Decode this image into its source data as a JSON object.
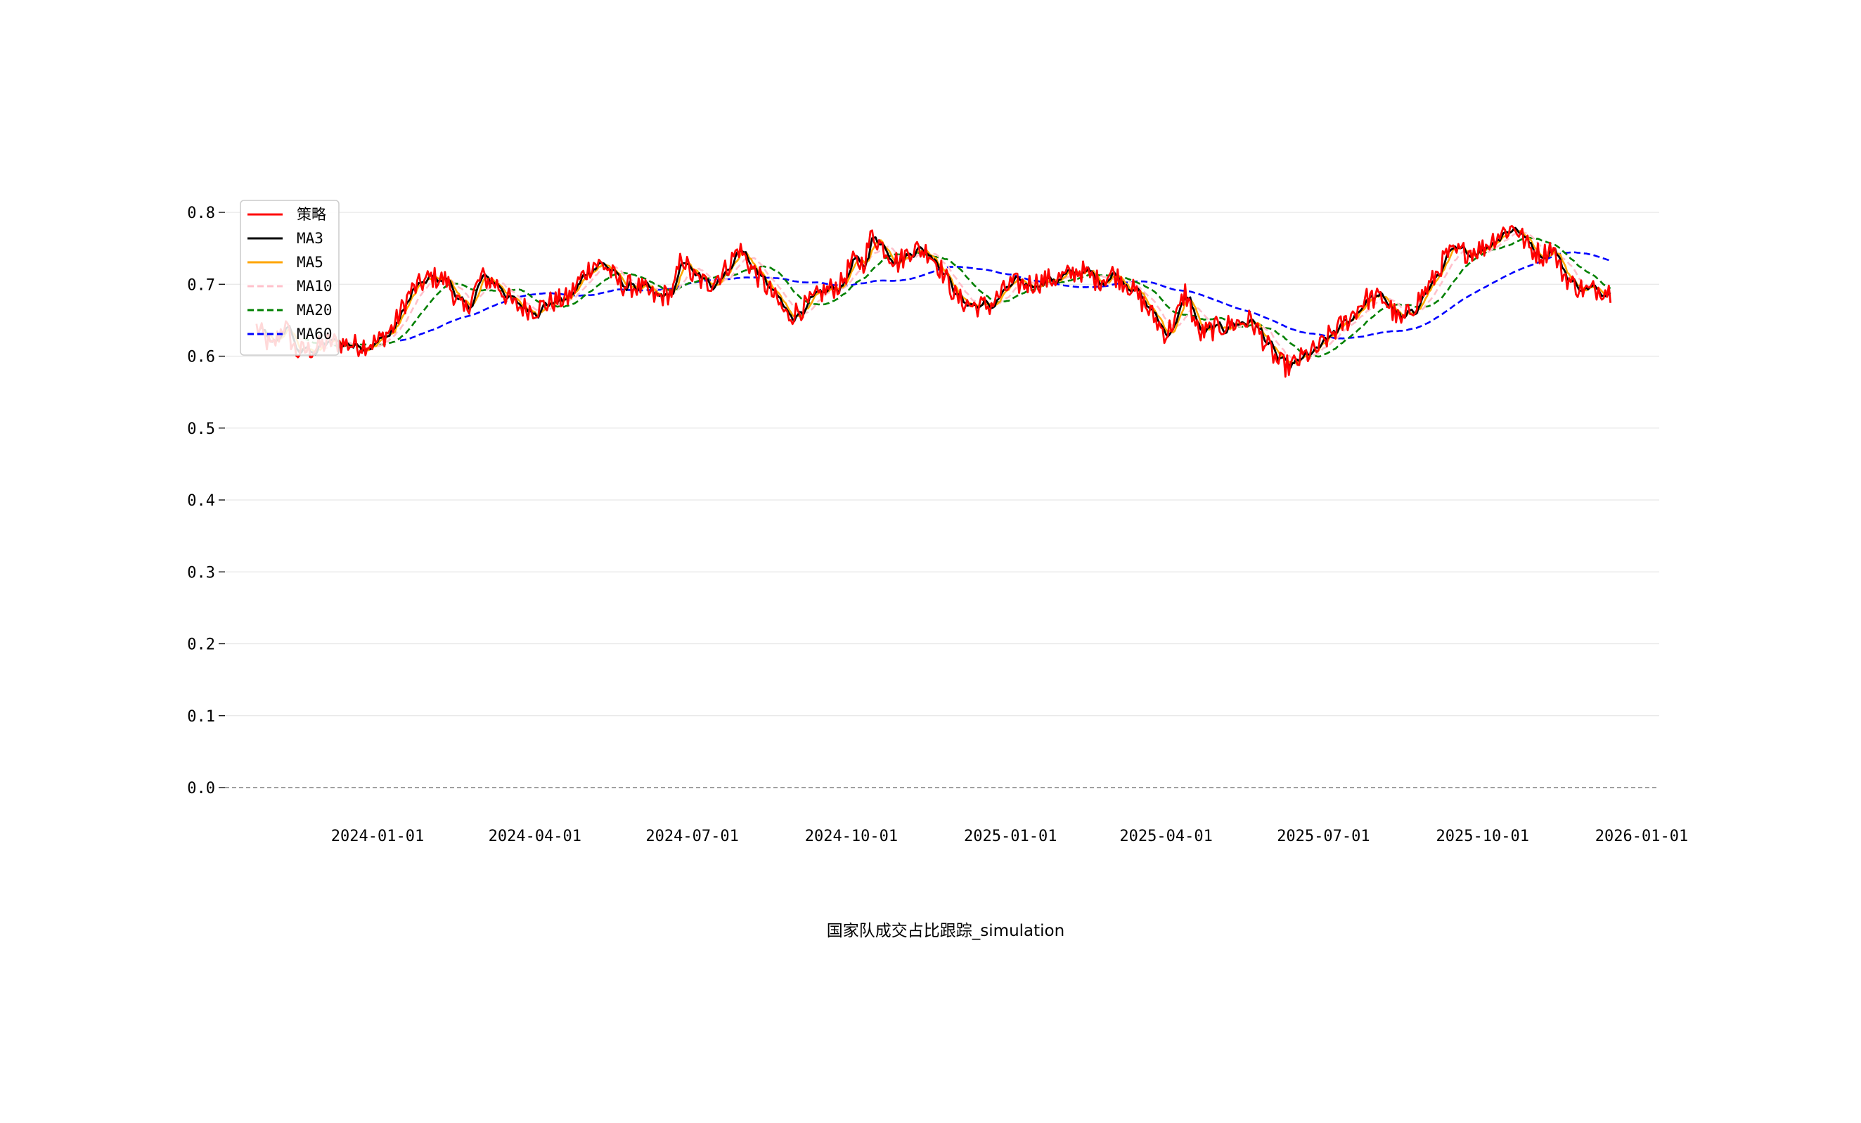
{
  "chart_data": {
    "type": "line",
    "xlabel": "国家队成交占比跟踪_simulation",
    "ylabel": "",
    "x_range": [
      "2023-10-01",
      "2026-01-01"
    ],
    "ylim": [
      0,
      0.8
    ],
    "y_ticks": [
      0.0,
      0.1,
      0.2,
      0.3,
      0.4,
      0.5,
      0.6,
      0.7,
      0.8
    ],
    "x_ticks": [
      "2024-01-01",
      "2024-04-01",
      "2024-07-01",
      "2024-10-01",
      "2025-01-01",
      "2025-04-01",
      "2025-07-01",
      "2025-10-01",
      "2026-01-01"
    ],
    "grid": "horizontal",
    "legend_position": "top-left",
    "zero_line": {
      "y": 0.0,
      "color": "#808080",
      "style": "dashed"
    },
    "keypoints": [
      [
        "2023-10-23",
        0.64
      ],
      [
        "2023-11-01",
        0.61
      ],
      [
        "2023-11-08",
        0.645
      ],
      [
        "2023-11-15",
        0.605
      ],
      [
        "2023-11-25",
        0.61
      ],
      [
        "2023-12-05",
        0.62
      ],
      [
        "2023-12-20",
        0.615
      ],
      [
        "2024-01-01",
        0.62
      ],
      [
        "2024-01-10",
        0.64
      ],
      [
        "2024-01-20",
        0.69
      ],
      [
        "2024-02-01",
        0.71
      ],
      [
        "2024-02-10",
        0.705
      ],
      [
        "2024-02-20",
        0.66
      ],
      [
        "2024-03-01",
        0.71
      ],
      [
        "2024-03-10",
        0.7
      ],
      [
        "2024-03-20",
        0.67
      ],
      [
        "2024-04-01",
        0.665
      ],
      [
        "2024-04-10",
        0.675
      ],
      [
        "2024-04-20",
        0.68
      ],
      [
        "2024-04-28",
        0.71
      ],
      [
        "2024-05-05",
        0.73
      ],
      [
        "2024-05-12",
        0.725
      ],
      [
        "2024-05-20",
        0.7
      ],
      [
        "2024-06-01",
        0.695
      ],
      [
        "2024-06-10",
        0.68
      ],
      [
        "2024-06-20",
        0.69
      ],
      [
        "2024-06-25",
        0.74
      ],
      [
        "2024-07-01",
        0.71
      ],
      [
        "2024-07-10",
        0.7
      ],
      [
        "2024-07-20",
        0.72
      ],
      [
        "2024-07-28",
        0.75
      ],
      [
        "2024-08-05",
        0.72
      ],
      [
        "2024-08-15",
        0.69
      ],
      [
        "2024-08-25",
        0.655
      ],
      [
        "2024-09-05",
        0.67
      ],
      [
        "2024-09-15",
        0.69
      ],
      [
        "2024-09-25",
        0.7
      ],
      [
        "2024-10-01",
        0.73
      ],
      [
        "2024-10-08",
        0.73
      ],
      [
        "2024-10-13",
        0.77
      ],
      [
        "2024-10-20",
        0.75
      ],
      [
        "2024-10-28",
        0.73
      ],
      [
        "2024-11-05",
        0.75
      ],
      [
        "2024-11-15",
        0.745
      ],
      [
        "2024-11-22",
        0.72
      ],
      [
        "2024-12-01",
        0.68
      ],
      [
        "2024-12-10",
        0.67
      ],
      [
        "2024-12-20",
        0.67
      ],
      [
        "2025-01-01",
        0.7
      ],
      [
        "2025-01-10",
        0.7
      ],
      [
        "2025-01-20",
        0.705
      ],
      [
        "2025-02-01",
        0.71
      ],
      [
        "2025-02-10",
        0.72
      ],
      [
        "2025-02-20",
        0.705
      ],
      [
        "2025-03-01",
        0.715
      ],
      [
        "2025-03-10",
        0.7
      ],
      [
        "2025-03-20",
        0.67
      ],
      [
        "2025-04-01",
        0.63
      ],
      [
        "2025-04-08",
        0.66
      ],
      [
        "2025-04-12",
        0.69
      ],
      [
        "2025-04-20",
        0.63
      ],
      [
        "2025-05-01",
        0.64
      ],
      [
        "2025-05-10",
        0.645
      ],
      [
        "2025-05-20",
        0.65
      ],
      [
        "2025-05-28",
        0.62
      ],
      [
        "2025-06-05",
        0.59
      ],
      [
        "2025-06-12",
        0.585
      ],
      [
        "2025-06-20",
        0.6
      ],
      [
        "2025-06-28",
        0.61
      ],
      [
        "2025-07-05",
        0.63
      ],
      [
        "2025-07-15",
        0.65
      ],
      [
        "2025-07-25",
        0.68
      ],
      [
        "2025-08-05",
        0.68
      ],
      [
        "2025-08-15",
        0.645
      ],
      [
        "2025-08-22",
        0.67
      ],
      [
        "2025-09-01",
        0.7
      ],
      [
        "2025-09-10",
        0.74
      ],
      [
        "2025-09-20",
        0.745
      ],
      [
        "2025-10-01",
        0.75
      ],
      [
        "2025-10-10",
        0.77
      ],
      [
        "2025-10-20",
        0.78
      ],
      [
        "2025-10-28",
        0.75
      ],
      [
        "2025-11-05",
        0.74
      ],
      [
        "2025-11-10",
        0.755
      ],
      [
        "2025-11-15",
        0.72
      ],
      [
        "2025-11-22",
        0.7
      ],
      [
        "2025-12-01",
        0.69
      ],
      [
        "2025-12-08",
        0.695
      ],
      [
        "2025-12-14",
        0.69
      ]
    ],
    "series": [
      {
        "name": "策略",
        "color": "#ff0000",
        "style": "solid",
        "noise": 0.014,
        "window": 1
      },
      {
        "name": "MA3",
        "color": "#000000",
        "style": "solid",
        "noise": 0,
        "window": 3
      },
      {
        "name": "MA5",
        "color": "#ffa500",
        "style": "solid",
        "noise": 0,
        "window": 5
      },
      {
        "name": "MA10",
        "color": "#ffc0cb",
        "style": "dashed",
        "noise": 0,
        "window": 10
      },
      {
        "name": "MA20",
        "color": "#008000",
        "style": "dashed",
        "noise": 0,
        "window": 20
      },
      {
        "name": "MA60",
        "color": "#0000ff",
        "style": "dashed",
        "noise": 0,
        "window": 60
      }
    ]
  }
}
